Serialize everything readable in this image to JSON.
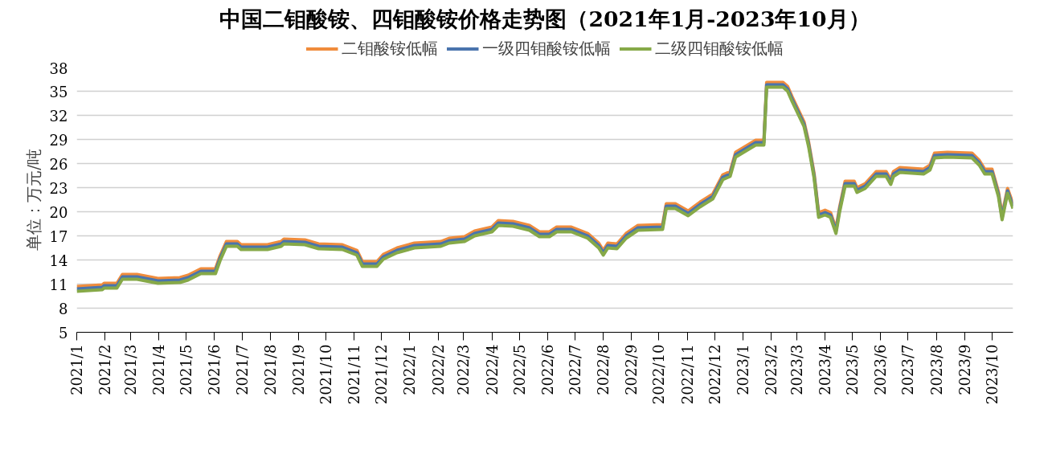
{
  "chart_data": {
    "type": "line",
    "title": "中国二钼酸铵、四钼酸铵价格走势图（2021年1月-2023年10月）",
    "ylabel": "单位：万元/吨",
    "x": [
      "2021-01-01",
      "2021-01-29",
      "2021-01-31",
      "2021-02-14",
      "2021-02-20",
      "2021-03-08",
      "2021-03-31",
      "2021-04-24",
      "2021-05-03",
      "2021-05-17",
      "2021-06-02",
      "2021-06-07",
      "2021-06-14",
      "2021-06-26",
      "2021-06-30",
      "2021-07-29",
      "2021-08-13",
      "2021-08-16",
      "2021-09-08",
      "2021-09-23",
      "2021-10-19",
      "2021-11-04",
      "2021-11-10",
      "2021-11-26",
      "2021-12-03",
      "2021-12-18",
      "2022-01-06",
      "2022-02-04",
      "2022-02-13",
      "2022-03-02",
      "2022-03-13",
      "2022-04-01",
      "2022-04-08",
      "2022-04-24",
      "2022-05-12",
      "2022-05-23",
      "2022-06-03",
      "2022-06-11",
      "2022-06-27",
      "2022-07-15",
      "2022-07-27",
      "2022-08-01",
      "2022-08-06",
      "2022-08-16",
      "2022-08-26",
      "2022-09-08",
      "2022-10-05",
      "2022-10-09",
      "2022-10-19",
      "2022-11-02",
      "2022-11-15",
      "2022-11-29",
      "2022-12-10",
      "2022-12-18",
      "2022-12-24",
      "2023-01-15",
      "2023-01-24",
      "2023-01-27",
      "2023-02-14",
      "2023-02-19",
      "2023-02-24",
      "2023-03-09",
      "2023-03-14",
      "2023-03-20",
      "2023-03-25",
      "2023-04-01",
      "2023-04-07",
      "2023-04-13",
      "2023-04-17",
      "2023-04-23",
      "2023-05-03",
      "2023-05-06",
      "2023-05-15",
      "2023-05-27",
      "2023-06-07",
      "2023-06-12",
      "2023-06-15",
      "2023-06-22",
      "2023-07-18",
      "2023-07-25",
      "2023-07-30",
      "2023-08-13",
      "2023-09-09",
      "2023-09-17",
      "2023-09-23",
      "2023-10-01",
      "2023-10-08",
      "2023-10-12",
      "2023-10-18",
      "2023-10-24"
    ],
    "series": [
      {
        "name": "二钼酸铵低幅",
        "color": "#f08c3c",
        "values": [
          10.7,
          10.9,
          11.1,
          11.1,
          12.2,
          12.2,
          11.7,
          11.8,
          12.1,
          12.9,
          12.9,
          14.5,
          16.3,
          16.3,
          15.9,
          15.9,
          16.3,
          16.6,
          16.5,
          16.0,
          15.9,
          15.2,
          13.8,
          13.8,
          14.7,
          15.5,
          16.1,
          16.3,
          16.7,
          16.9,
          17.6,
          18.1,
          18.9,
          18.8,
          18.3,
          17.5,
          17.5,
          18.1,
          18.1,
          17.3,
          16.1,
          15.2,
          16.1,
          16.0,
          17.3,
          18.3,
          18.4,
          21.0,
          21.0,
          20.1,
          21.2,
          22.2,
          24.6,
          25.0,
          27.4,
          28.9,
          28.9,
          36.1,
          36.1,
          35.6,
          34.3,
          31.2,
          28.7,
          24.8,
          19.9,
          20.2,
          19.9,
          17.9,
          20.6,
          23.8,
          23.8,
          23.0,
          23.5,
          25.0,
          25.0,
          24.0,
          25.0,
          25.5,
          25.3,
          25.8,
          27.3,
          27.4,
          27.3,
          26.4,
          25.3,
          25.3,
          22.5,
          19.6,
          22.9,
          21.0
        ]
      },
      {
        "name": "一级四钼酸铵低幅",
        "color": "#4a74ad",
        "values": [
          10.4,
          10.6,
          10.8,
          10.8,
          11.9,
          11.9,
          11.4,
          11.5,
          11.8,
          12.6,
          12.6,
          14.2,
          16.0,
          16.0,
          15.6,
          15.6,
          16.0,
          16.3,
          16.2,
          15.7,
          15.6,
          14.9,
          13.5,
          13.5,
          14.4,
          15.2,
          15.8,
          16.0,
          16.4,
          16.6,
          17.3,
          17.8,
          18.6,
          18.5,
          18.0,
          17.2,
          17.2,
          17.8,
          17.8,
          17.0,
          15.8,
          14.9,
          15.8,
          15.7,
          17.0,
          18.0,
          18.1,
          20.7,
          20.7,
          19.8,
          20.9,
          21.9,
          24.3,
          24.7,
          27.1,
          28.6,
          28.6,
          35.8,
          35.8,
          35.3,
          34.0,
          30.9,
          28.4,
          24.5,
          19.6,
          19.9,
          19.6,
          17.6,
          20.3,
          23.5,
          23.5,
          22.7,
          23.2,
          24.7,
          24.7,
          23.7,
          24.7,
          25.2,
          25.0,
          25.5,
          27.0,
          27.1,
          27.0,
          26.1,
          25.0,
          25.0,
          22.2,
          19.3,
          22.6,
          20.7
        ]
      },
      {
        "name": "二级四钼酸铵低幅",
        "color": "#86a948",
        "values": [
          10.1,
          10.3,
          10.5,
          10.5,
          11.6,
          11.6,
          11.1,
          11.2,
          11.5,
          12.3,
          12.3,
          13.9,
          15.7,
          15.7,
          15.3,
          15.3,
          15.7,
          16.0,
          15.9,
          15.4,
          15.3,
          14.6,
          13.2,
          13.2,
          14.1,
          14.9,
          15.5,
          15.7,
          16.1,
          16.3,
          17.0,
          17.5,
          18.3,
          18.2,
          17.7,
          16.9,
          16.9,
          17.5,
          17.5,
          16.7,
          15.5,
          14.6,
          15.5,
          15.4,
          16.7,
          17.7,
          17.8,
          20.4,
          20.4,
          19.5,
          20.6,
          21.6,
          24.0,
          24.4,
          26.8,
          28.3,
          28.3,
          35.5,
          35.5,
          35.0,
          33.7,
          30.6,
          28.1,
          24.2,
          19.3,
          19.6,
          19.3,
          17.3,
          20.0,
          23.2,
          23.2,
          22.4,
          22.9,
          24.4,
          24.4,
          23.4,
          24.4,
          24.9,
          24.7,
          25.2,
          26.7,
          26.8,
          26.7,
          25.8,
          24.7,
          24.7,
          21.9,
          19.0,
          22.3,
          20.4
        ]
      }
    ],
    "xlim": [
      "2021-01-01",
      "2023-10-24"
    ],
    "xticks": [
      {
        "value": "2021-01-01",
        "label": "2021/1"
      },
      {
        "value": "2021-02-01",
        "label": "2021/2"
      },
      {
        "value": "2021-03-01",
        "label": "2021/3"
      },
      {
        "value": "2021-04-01",
        "label": "2021/4"
      },
      {
        "value": "2021-05-01",
        "label": "2021/5"
      },
      {
        "value": "2021-06-01",
        "label": "2021/6"
      },
      {
        "value": "2021-07-01",
        "label": "2021/7"
      },
      {
        "value": "2021-08-01",
        "label": "2021/8"
      },
      {
        "value": "2021-09-01",
        "label": "2021/9"
      },
      {
        "value": "2021-10-01",
        "label": "2021/10"
      },
      {
        "value": "2021-11-01",
        "label": "2021/11"
      },
      {
        "value": "2021-12-01",
        "label": "2021/12"
      },
      {
        "value": "2022-01-01",
        "label": "2022/1"
      },
      {
        "value": "2022-02-01",
        "label": "2022/2"
      },
      {
        "value": "2022-03-01",
        "label": "2022/3"
      },
      {
        "value": "2022-04-01",
        "label": "2022/4"
      },
      {
        "value": "2022-05-01",
        "label": "2022/5"
      },
      {
        "value": "2022-06-01",
        "label": "2022/6"
      },
      {
        "value": "2022-07-01",
        "label": "2022/7"
      },
      {
        "value": "2022-08-01",
        "label": "2022/8"
      },
      {
        "value": "2022-09-01",
        "label": "2022/9"
      },
      {
        "value": "2022-10-01",
        "label": "2022/10"
      },
      {
        "value": "2022-11-01",
        "label": "2022/11"
      },
      {
        "value": "2022-12-01",
        "label": "2022/12"
      },
      {
        "value": "2023-01-01",
        "label": "2023/1"
      },
      {
        "value": "2023-02-01",
        "label": "2023/2"
      },
      {
        "value": "2023-03-01",
        "label": "2023/3"
      },
      {
        "value": "2023-04-01",
        "label": "2023/4"
      },
      {
        "value": "2023-05-01",
        "label": "2023/5"
      },
      {
        "value": "2023-06-01",
        "label": "2023/6"
      },
      {
        "value": "2023-07-01",
        "label": "2023/7"
      },
      {
        "value": "2023-08-01",
        "label": "2023/8"
      },
      {
        "value": "2023-09-01",
        "label": "2023/9"
      },
      {
        "value": "2023-10-01",
        "label": "2023/10"
      }
    ],
    "ylim": [
      5,
      38
    ],
    "yticks": [
      5,
      8,
      11,
      14,
      17,
      20,
      23,
      26,
      29,
      32,
      35,
      38
    ],
    "grid": "y",
    "legend": "top",
    "marker": "none",
    "line_style": "solid"
  }
}
